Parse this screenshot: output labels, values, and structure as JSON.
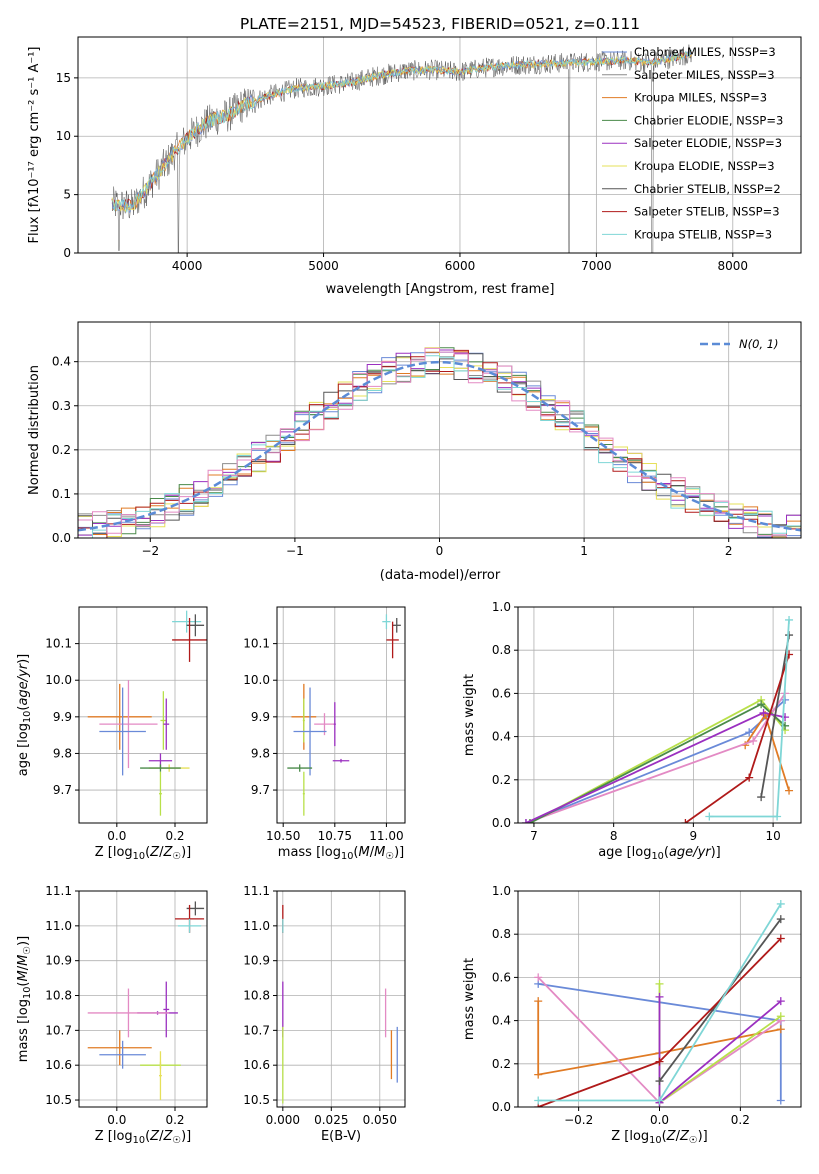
{
  "colors": {
    "chab_miles": "#6a8ad8",
    "salp_miles": "#8c8c8c",
    "krou_miles": "#e07b25",
    "chab_elodie": "#4a8a4a",
    "salp_elodie": "#9b30c0",
    "krou_elodie": "#e6e05a",
    "chab_stelib": "#555555",
    "salp_stelib": "#b01a1a",
    "krou_stelib": "#7fd6d6",
    "pink": "#e38ac4",
    "lime": "#b8e04a",
    "normal": "#5b8bd6"
  },
  "chart_data": [
    {
      "id": "spectrum",
      "type": "line",
      "title": "PLATE=2151, MJD=54523, FIBERID=0521, z=0.111",
      "xlabel": "wavelength [Angstrom, rest frame]",
      "ylabel": "Flux [fλ10⁻¹⁷ erg cm⁻² s⁻¹ A⁻¹]",
      "xlim": [
        3200,
        8500
      ],
      "ylim": [
        0,
        18.5
      ],
      "xticks": [
        4000,
        5000,
        6000,
        7000,
        8000
      ],
      "yticks": [
        0,
        5,
        10,
        15
      ],
      "legend_position": "right",
      "series": [
        {
          "name": "Chabrier MILES, NSSP=3",
          "color_key": "chab_miles"
        },
        {
          "name": "Salpeter MILES, NSSP=3",
          "color_key": "salp_miles"
        },
        {
          "name": "Kroupa MILES, NSSP=3",
          "color_key": "krou_miles"
        },
        {
          "name": "Chabrier ELODIE, NSSP=3",
          "color_key": "chab_elodie"
        },
        {
          "name": "Salpeter ELODIE, NSSP=3",
          "color_key": "salp_elodie"
        },
        {
          "name": "Kroupa ELODIE, NSSP=3",
          "color_key": "krou_elodie"
        },
        {
          "name": "Chabrier STELIB, NSSP=2",
          "color_key": "chab_stelib"
        },
        {
          "name": "Salpeter STELIB, NSSP=3",
          "color_key": "salp_stelib"
        },
        {
          "name": "Kroupa STELIB, NSSP=3",
          "color_key": "krou_stelib"
        }
      ],
      "continuum": {
        "x": [
          3450,
          3600,
          3700,
          3800,
          3900,
          4000,
          4100,
          4200,
          4300,
          4400,
          4600,
          4800,
          5000,
          5200,
          5400,
          5600,
          5800,
          6000,
          6200,
          6400,
          6600,
          6800,
          7000,
          7200,
          7400,
          7600,
          7700
        ],
        "y": [
          4.2,
          4.0,
          5.5,
          7.0,
          8.5,
          9.8,
          10.8,
          11.5,
          11.8,
          12.6,
          13.5,
          14.1,
          14.3,
          14.6,
          15.2,
          15.6,
          15.7,
          15.5,
          15.9,
          16.1,
          16.2,
          16.3,
          16.4,
          16.5,
          16.3,
          16.8,
          17.1
        ]
      },
      "dips": [
        {
          "x": 3500,
          "y": 0.2
        },
        {
          "x": 3935,
          "y": 0.0
        },
        {
          "x": 6800,
          "y": 0.0
        },
        {
          "x": 7410,
          "y": 0.0
        }
      ]
    },
    {
      "id": "residuals",
      "type": "line",
      "title": "",
      "xlabel": "(data-model)/error",
      "ylabel": "Normed distribution",
      "xlim": [
        -2.5,
        2.5
      ],
      "ylim": [
        0,
        0.49
      ],
      "xticks": [
        -2,
        -1,
        0,
        1,
        2
      ],
      "yticks": [
        0.0,
        0.1,
        0.2,
        0.3,
        0.4
      ],
      "legend": "N(0, 1)",
      "legend_position": "top-right",
      "bin_width": 0.1
    },
    {
      "id": "z_age",
      "type": "scatter",
      "xlabel": "Z [log10(Z/Z☉)]",
      "ylabel": "age  [log10(age/yr)]",
      "xlim": [
        -0.13,
        0.31
      ],
      "ylim": [
        9.61,
        10.2
      ],
      "xticks": [
        0.0,
        0.2
      ],
      "yticks": [
        9.7,
        9.8,
        9.9,
        10.0,
        10.1
      ],
      "points": [
        {
          "color_key": "krou_stelib",
          "x": 0.24,
          "y": 10.16,
          "xerr": 0.05,
          "yerr": 0.03
        },
        {
          "color_key": "chab_stelib",
          "x": 0.27,
          "y": 10.15,
          "xerr": 0.03,
          "yerr": 0.03
        },
        {
          "color_key": "salp_stelib",
          "x": 0.25,
          "y": 10.11,
          "xerr": 0.06,
          "yerr": 0.06
        },
        {
          "color_key": "krou_miles",
          "x": 0.01,
          "y": 9.9,
          "xerr": 0.11,
          "yerr": 0.09
        },
        {
          "color_key": "lime",
          "x": 0.16,
          "y": 9.89,
          "xerr": 0.01,
          "yerr": 0.08
        },
        {
          "color_key": "salp_elodie",
          "x": 0.17,
          "y": 9.88,
          "xerr": 0.01,
          "yerr": 0.07
        },
        {
          "color_key": "pink",
          "x": 0.04,
          "y": 9.88,
          "xerr": 0.1,
          "yerr": 0.12
        },
        {
          "color_key": "chab_miles",
          "x": 0.02,
          "y": 9.86,
          "xerr": 0.08,
          "yerr": 0.12
        },
        {
          "color_key": "salp_elodie",
          "x": 0.15,
          "y": 9.78,
          "xerr": 0.04,
          "yerr": 0.02
        },
        {
          "color_key": "krou_elodie",
          "x": 0.18,
          "y": 9.76,
          "xerr": 0.07,
          "yerr": 0.01
        },
        {
          "color_key": "chab_elodie",
          "x": 0.15,
          "y": 9.76,
          "xerr": 0.07,
          "yerr": 0.01
        },
        {
          "color_key": "lime",
          "x": 0.15,
          "y": 9.69,
          "xerr": 0.005,
          "yerr": 0.06
        }
      ]
    },
    {
      "id": "mass_age",
      "type": "scatter",
      "xlabel": "mass [log10(M/M☉)]",
      "ylabel": "",
      "xlim": [
        10.47,
        11.09
      ],
      "ylim": [
        9.61,
        10.2
      ],
      "xticks": [
        10.5,
        10.75,
        11.0
      ],
      "yticks": [
        9.7,
        9.8,
        9.9,
        10.0,
        10.1
      ],
      "points": [
        {
          "color_key": "krou_stelib",
          "x": 11.0,
          "y": 10.16,
          "xerr": 0.02,
          "yerr": 0.02
        },
        {
          "color_key": "chab_stelib",
          "x": 11.05,
          "y": 10.15,
          "xerr": 0.02,
          "yerr": 0.02
        },
        {
          "color_key": "salp_stelib",
          "x": 11.03,
          "y": 10.11,
          "xerr": 0.03,
          "yerr": 0.05
        },
        {
          "color_key": "krou_miles",
          "x": 10.6,
          "y": 9.9,
          "xerr": 0.06,
          "yerr": 0.09
        },
        {
          "color_key": "pink",
          "x": 10.7,
          "y": 9.88,
          "xerr": 0.05,
          "yerr": 0.03
        },
        {
          "color_key": "lime",
          "x": 10.6,
          "y": 9.89,
          "xerr": 0.005,
          "yerr": 0.06
        },
        {
          "color_key": "salp_elodie",
          "x": 10.75,
          "y": 9.88,
          "xerr": 0.005,
          "yerr": 0.06
        },
        {
          "color_key": "chab_miles",
          "x": 10.63,
          "y": 9.86,
          "xerr": 0.08,
          "yerr": 0.12
        },
        {
          "color_key": "salp_elodie",
          "x": 10.78,
          "y": 9.78,
          "xerr": 0.04,
          "yerr": 0.005
        },
        {
          "color_key": "chab_elodie",
          "x": 10.58,
          "y": 9.76,
          "xerr": 0.06,
          "yerr": 0.01
        },
        {
          "color_key": "lime",
          "x": 10.6,
          "y": 9.69,
          "xerr": 0.005,
          "yerr": 0.06
        }
      ]
    },
    {
      "id": "age_weight",
      "type": "line",
      "xlabel": "age  [log10(age/yr)]",
      "ylabel": "mass weight",
      "xlim": [
        6.8,
        10.35
      ],
      "ylim": [
        0,
        1.0
      ],
      "xticks": [
        7,
        8,
        9,
        10
      ],
      "yticks": [
        0.0,
        0.2,
        0.4,
        0.6,
        0.8,
        1.0
      ],
      "series": [
        {
          "color_key": "chab_miles",
          "points": [
            [
              6.9,
              0.0
            ],
            [
              9.7,
              0.42
            ],
            [
              10.15,
              0.57
            ]
          ]
        },
        {
          "color_key": "krou_miles",
          "points": [
            [
              9.65,
              0.36
            ],
            [
              9.9,
              0.5
            ],
            [
              10.2,
              0.15
            ]
          ]
        },
        {
          "color_key": "pink",
          "points": [
            [
              6.9,
              0.0
            ],
            [
              9.75,
              0.38
            ],
            [
              10.15,
              0.6
            ]
          ]
        },
        {
          "color_key": "lime",
          "points": [
            [
              6.95,
              0.0
            ],
            [
              9.85,
              0.57
            ],
            [
              10.15,
              0.43
            ]
          ]
        },
        {
          "color_key": "chab_elodie",
          "points": [
            [
              6.95,
              0.0
            ],
            [
              9.85,
              0.55
            ],
            [
              10.15,
              0.45
            ]
          ]
        },
        {
          "color_key": "salp_elodie",
          "points": [
            [
              6.9,
              0.0
            ],
            [
              9.88,
              0.51
            ],
            [
              10.15,
              0.49
            ]
          ]
        },
        {
          "color_key": "chab_stelib",
          "points": [
            [
              9.85,
              0.12
            ],
            [
              10.2,
              0.87
            ]
          ]
        },
        {
          "color_key": "salp_stelib",
          "points": [
            [
              8.9,
              0.0
            ],
            [
              9.7,
              0.21
            ],
            [
              10.2,
              0.78
            ]
          ]
        },
        {
          "color_key": "krou_stelib",
          "points": [
            [
              9.2,
              0.03
            ],
            [
              10.05,
              0.03
            ],
            [
              10.2,
              0.94
            ]
          ]
        }
      ]
    },
    {
      "id": "z_mass",
      "type": "scatter",
      "xlabel": "Z [log10(Z/Z☉)]",
      "ylabel": "mass [log10(M/M☉)]",
      "xlim": [
        -0.13,
        0.31
      ],
      "ylim": [
        10.48,
        11.1
      ],
      "xticks": [
        0.0,
        0.2
      ],
      "yticks": [
        10.5,
        10.6,
        10.7,
        10.8,
        10.9,
        11.0,
        11.1
      ],
      "points": [
        {
          "color_key": "chab_stelib",
          "x": 0.27,
          "y": 11.05,
          "xerr": 0.03,
          "yerr": 0.02
        },
        {
          "color_key": "salp_stelib",
          "x": 0.25,
          "y": 11.02,
          "xerr": 0.05,
          "yerr": 0.04
        },
        {
          "color_key": "krou_stelib",
          "x": 0.25,
          "y": 11.0,
          "xerr": 0.04,
          "yerr": 0.02
        },
        {
          "color_key": "salp_elodie",
          "x": 0.17,
          "y": 10.76,
          "xerr": 0.01,
          "yerr": 0.08
        },
        {
          "color_key": "salp_elodie",
          "x": 0.14,
          "y": 10.75,
          "xerr": 0.07,
          "yerr": 0.005
        },
        {
          "color_key": "pink",
          "x": 0.04,
          "y": 10.75,
          "xerr": 0.14,
          "yerr": 0.07
        },
        {
          "color_key": "krou_miles",
          "x": 0.01,
          "y": 10.65,
          "xerr": 0.11,
          "yerr": 0.05
        },
        {
          "color_key": "chab_miles",
          "x": 0.02,
          "y": 10.63,
          "xerr": 0.08,
          "yerr": 0.04
        },
        {
          "color_key": "lime",
          "x": 0.15,
          "y": 10.6,
          "xerr": 0.07,
          "yerr": 0.01
        },
        {
          "color_key": "krou_elodie",
          "x": 0.15,
          "y": 10.57,
          "xerr": 0.005,
          "yerr": 0.07
        }
      ]
    },
    {
      "id": "ebv_mass",
      "type": "scatter",
      "xlabel": "E(B-V)",
      "ylabel": "",
      "xlim": [
        -0.003,
        0.063
      ],
      "ylim": [
        10.48,
        11.1
      ],
      "xticks": [
        0.0,
        0.025,
        0.05
      ],
      "yticks": [
        10.5,
        10.6,
        10.7,
        10.8,
        10.9,
        11.0,
        11.1
      ],
      "points": [
        {
          "color_key": "salp_stelib",
          "x": 0.0,
          "y": 11.02,
          "xerr": 0,
          "yerr": 0.04
        },
        {
          "color_key": "krou_stelib",
          "x": 0.0,
          "y": 11.0,
          "xerr": 0,
          "yerr": 0.02
        },
        {
          "color_key": "salp_elodie",
          "x": 0.0,
          "y": 10.76,
          "xerr": 0,
          "yerr": 0.08
        },
        {
          "color_key": "lime",
          "x": 0.0,
          "y": 10.6,
          "xerr": 0,
          "yerr": 0.11
        },
        {
          "color_key": "pink",
          "x": 0.053,
          "y": 10.75,
          "xerr": 0,
          "yerr": 0.07
        },
        {
          "color_key": "krou_miles",
          "x": 0.056,
          "y": 10.63,
          "xerr": 0,
          "yerr": 0.07
        },
        {
          "color_key": "chab_miles",
          "x": 0.059,
          "y": 10.63,
          "xerr": 0,
          "yerr": 0.08
        }
      ]
    },
    {
      "id": "z_weight",
      "type": "line",
      "xlabel": "Z [log10(Z/Z☉)]",
      "ylabel": "mass weight",
      "xlim": [
        -0.35,
        0.35
      ],
      "ylim": [
        0,
        1.0
      ],
      "xticks": [
        -0.2,
        0.0,
        0.2
      ],
      "yticks": [
        0.0,
        0.2,
        0.4,
        0.6,
        0.8,
        1.0
      ],
      "series": [
        {
          "color_key": "chab_miles",
          "points": [
            [
              -0.3,
              0.57
            ],
            [
              0.3,
              0.4
            ],
            [
              0.3,
              0.03
            ]
          ]
        },
        {
          "color_key": "krou_miles",
          "points": [
            [
              -0.3,
              0.49
            ],
            [
              -0.3,
              0.15
            ],
            [
              0.0,
              0.25
            ],
            [
              0.3,
              0.36
            ]
          ]
        },
        {
          "color_key": "pink",
          "points": [
            [
              -0.3,
              0.6
            ],
            [
              0.0,
              0.02
            ],
            [
              0.3,
              0.4
            ]
          ]
        },
        {
          "color_key": "lime",
          "points": [
            [
              0.0,
              0.57
            ],
            [
              0.0,
              0.02
            ],
            [
              0.3,
              0.42
            ]
          ]
        },
        {
          "color_key": "salp_elodie",
          "points": [
            [
              0.0,
              0.51
            ],
            [
              0.0,
              0.02
            ],
            [
              0.3,
              0.49
            ]
          ]
        },
        {
          "color_key": "chab_stelib",
          "points": [
            [
              0.0,
              0.12
            ],
            [
              0.3,
              0.87
            ]
          ]
        },
        {
          "color_key": "salp_stelib",
          "points": [
            [
              -0.3,
              0.0
            ],
            [
              0.0,
              0.21
            ],
            [
              0.3,
              0.78
            ]
          ]
        },
        {
          "color_key": "krou_stelib",
          "points": [
            [
              -0.3,
              0.03
            ],
            [
              0.0,
              0.03
            ],
            [
              0.3,
              0.94
            ]
          ]
        }
      ]
    }
  ]
}
